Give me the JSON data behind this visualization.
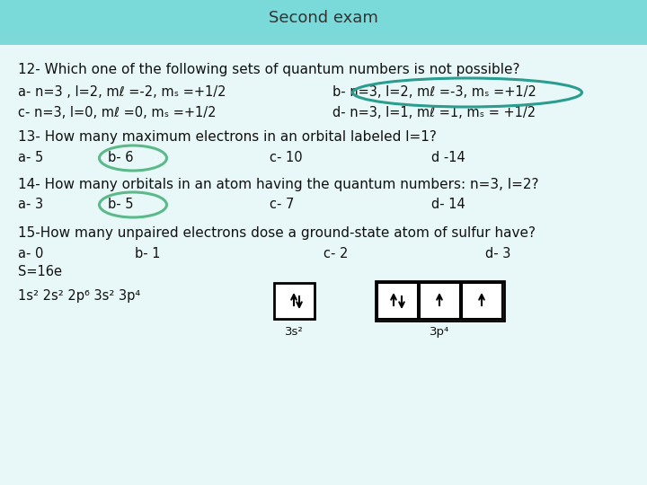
{
  "title": "Second exam",
  "header_bg": "#7dd8d8",
  "body_bg": "#ffffff",
  "q12": "12- Which one of the following sets of quantum numbers is not possible?",
  "q12a": "a- n=3 , l=2, mℓ =-2, mₛ =+1/2",
  "q12b": "b- n=3, l=2, mℓ =-3, mₛ =+1/2",
  "q12c": "c- n=3, l=0, mℓ =0, mₛ =+1/2",
  "q12d": "d- n=3, l=1, mℓ =1, mₛ = +1/2",
  "q13": "13- How many maximum electrons in an orbital labeled l=1?",
  "q13a": "a- 5",
  "q13b": "b- 6",
  "q13c": "c- 10",
  "q13d": "d -14",
  "q14": "14- How many orbitals in an atom having the quantum numbers: n=3, l=2?",
  "q14a": "a- 3",
  "q14b": "b- 5",
  "q14c": "c- 7",
  "q14d": "d- 14",
  "q15": "15-How many unpaired electrons dose a ground-state atom of sulfur have?",
  "q15a": "a- 0",
  "q15b": "b- 1",
  "q15c": "c- 2",
  "q15d": "d- 3",
  "q15_config": "S=16e",
  "q15_config2": "1s² 2s² 2p⁶ 3s² 3p⁴",
  "q15_label1": "3s²",
  "q15_label2": "3p⁴",
  "text_color": "#111111",
  "highlight_color": "#2a9d8f",
  "circle_color": "#2a9d8f",
  "oval_13b_color": "#5cba8a",
  "oval_14b_color": "#5cba8a"
}
